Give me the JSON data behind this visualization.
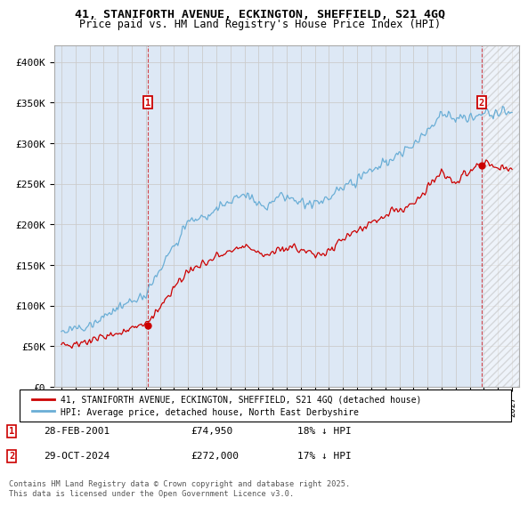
{
  "title": "41, STANIFORTH AVENUE, ECKINGTON, SHEFFIELD, S21 4GQ",
  "subtitle": "Price paid vs. HM Land Registry's House Price Index (HPI)",
  "ylim": [
    0,
    420000
  ],
  "yticks": [
    0,
    50000,
    100000,
    150000,
    200000,
    250000,
    300000,
    350000,
    400000
  ],
  "ytick_labels": [
    "£0",
    "£50K",
    "£100K",
    "£150K",
    "£200K",
    "£250K",
    "£300K",
    "£350K",
    "£400K"
  ],
  "hpi_color": "#6aaed6",
  "price_color": "#cc0000",
  "legend_house": "41, STANIFORTH AVENUE, ECKINGTON, SHEFFIELD, S21 4GQ (detached house)",
  "legend_hpi": "HPI: Average price, detached house, North East Derbyshire",
  "annotation1_label": "1",
  "annotation1_date": "28-FEB-2001",
  "annotation1_price": "£74,950",
  "annotation1_hpi": "18% ↓ HPI",
  "annotation2_label": "2",
  "annotation2_date": "29-OCT-2024",
  "annotation2_price": "£272,000",
  "annotation2_hpi": "17% ↓ HPI",
  "footer": "Contains HM Land Registry data © Crown copyright and database right 2025.\nThis data is licensed under the Open Government Licence v3.0.",
  "grid_color": "#cccccc",
  "bg_color": "#ffffff",
  "plot_bg_color": "#dde8f5",
  "sale1_x": 2001.15,
  "sale1_y": 74950,
  "sale2_x": 2024.83,
  "sale2_y": 272000,
  "xmin": 1995,
  "xmax": 2027
}
